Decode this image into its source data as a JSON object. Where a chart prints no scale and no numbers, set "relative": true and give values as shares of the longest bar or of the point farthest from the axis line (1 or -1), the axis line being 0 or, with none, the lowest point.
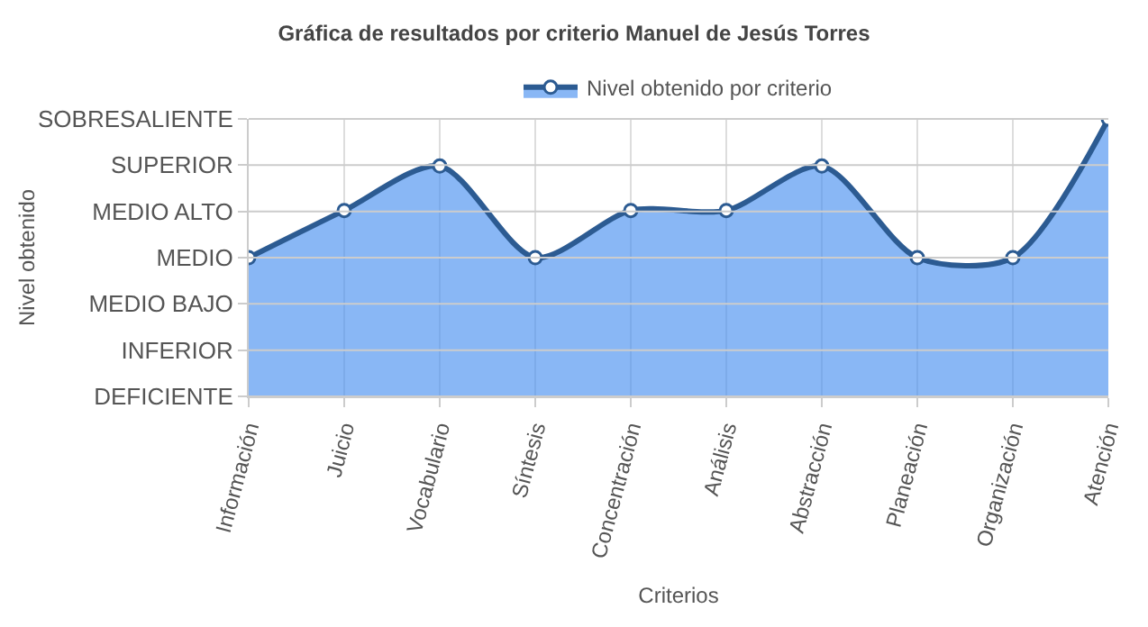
{
  "chart_data": {
    "type": "area",
    "title": "Gráfica de resultados por criterio Manuel de Jesús Torres",
    "xlabel": "Criterios",
    "categories": [
      "Información",
      "Juicio",
      "Vocabulario",
      "Síntesis",
      "Concentración",
      "Análisis",
      "Abstracción",
      "Planeación",
      "Organización",
      "Atención"
    ],
    "relative": true,
    "annotations": [
      "SOBRESALIENTE",
      "SUPERIOR",
      "MEDIO ALTO",
      "MEDIO",
      "MEDIO BAJO",
      "INFERIOR",
      "DEFICIENTE",
      "Nivel obtenido"
    ],
    "series": [
      {
        "name": "Nivel obtenido por criterio",
        "color": "#2c5b92",
        "values": [
          0.5,
          0.67,
          0.83,
          0.5,
          0.67,
          0.67,
          0.83,
          0.5,
          0.5,
          1
        ]
      }
    ],
    "grid": true,
    "legend": "top",
    "marker": "circle",
    "line_style": "solid"
  }
}
